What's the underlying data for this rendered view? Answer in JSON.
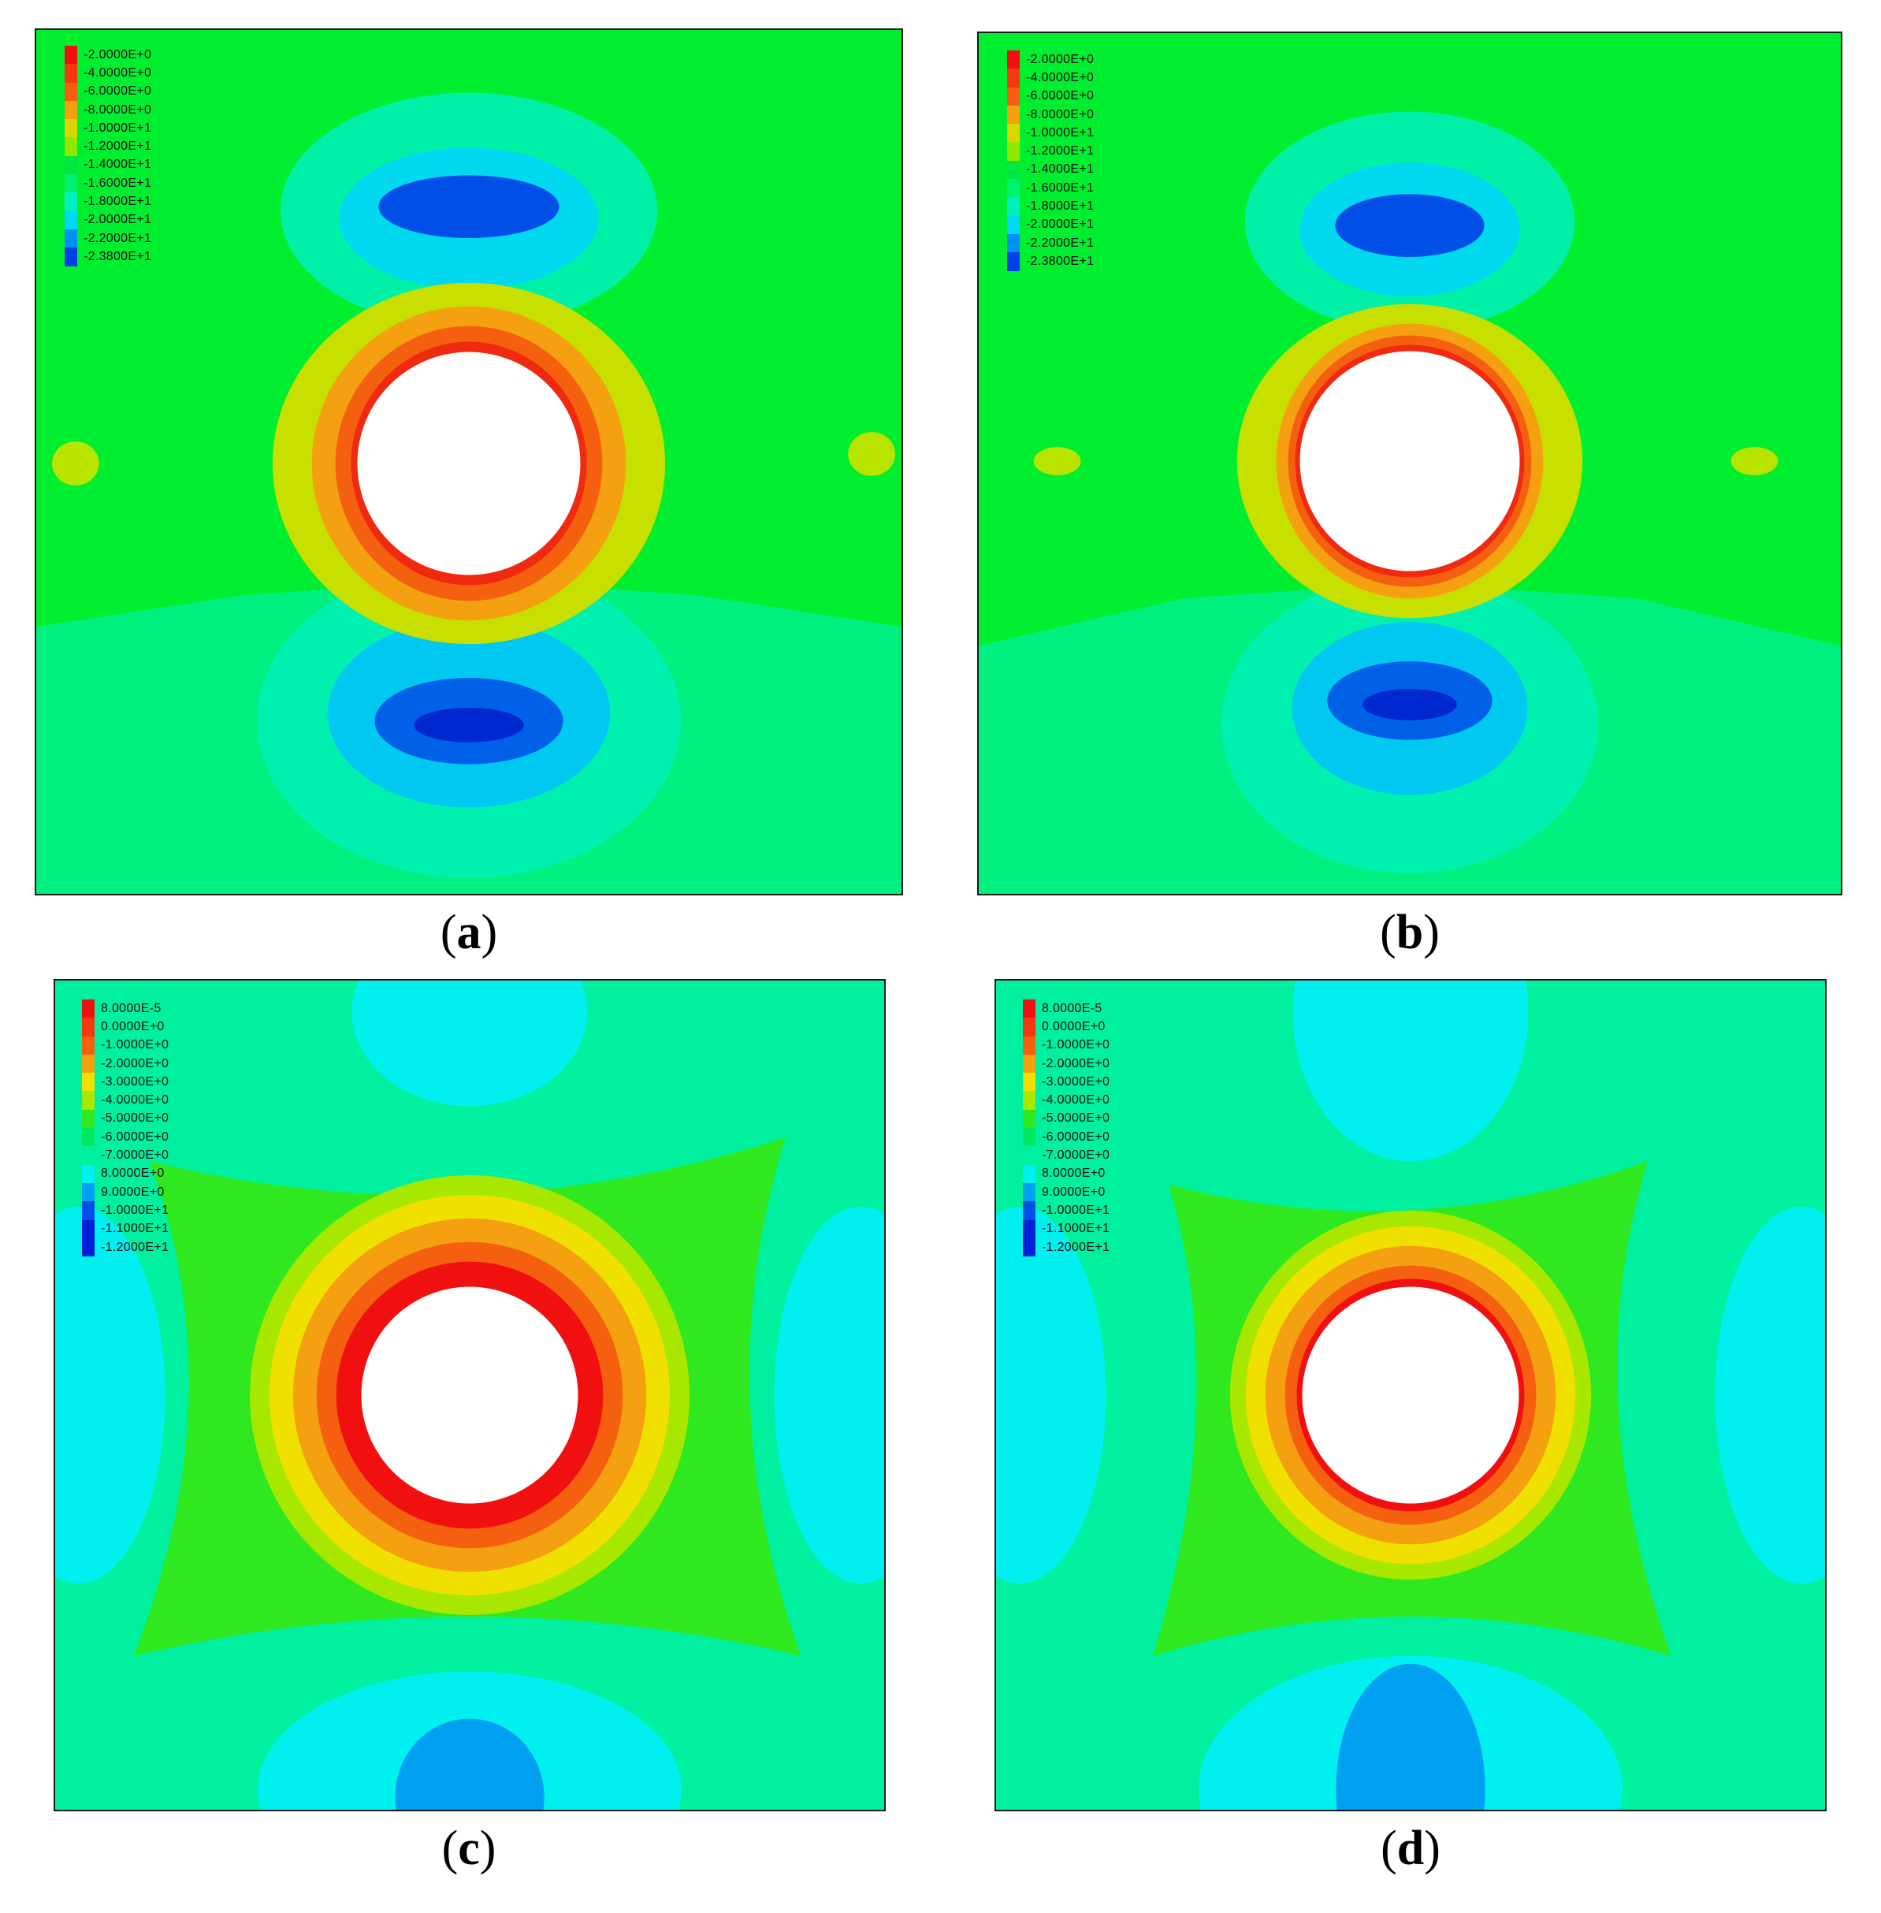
{
  "panels": [
    {
      "id": "a",
      "caption_letter": "a",
      "hole": true,
      "legend": {
        "colors": [
          "#f01010",
          "#f43810",
          "#f46010",
          "#f4a010",
          "#d8d800",
          "#90e800",
          "#00e840",
          "#00f070",
          "#00f0c0",
          "#00d8f8",
          "#0090f0",
          "#0040e8"
        ],
        "labels": [
          "-2.0000E+0",
          "-4.0000E+0",
          "-6.0000E+0",
          "-8.0000E+0",
          "-1.0000E+1",
          "-1.2000E+1",
          "-1.4000E+1",
          "-1.6000E+1",
          "-1.8000E+1",
          "-2.0000E+1",
          "-2.2000E+1",
          "-2.3800E+1"
        ]
      }
    },
    {
      "id": "b",
      "caption_letter": "b",
      "hole": true,
      "legend": {
        "colors": [
          "#f01010",
          "#f43810",
          "#f46010",
          "#f4a010",
          "#d8d800",
          "#90e800",
          "#00e840",
          "#00f070",
          "#00f0c0",
          "#00d8f8",
          "#0090f0",
          "#0040e8"
        ],
        "labels": [
          "-2.0000E+0",
          "-4.0000E+0",
          "-6.0000E+0",
          "-8.0000E+0",
          "-1.0000E+1",
          "-1.2000E+1",
          "-1.4000E+1",
          "-1.6000E+1",
          "-1.8000E+1",
          "-2.0000E+1",
          "-2.2000E+1",
          "-2.3800E+1"
        ]
      }
    },
    {
      "id": "c",
      "caption_letter": "c",
      "hole": true,
      "legend": {
        "colors": [
          "#f01010",
          "#f43810",
          "#f46010",
          "#f4a010",
          "#f0e000",
          "#a8e800",
          "#30e820",
          "#00e860",
          "#00f0a0",
          "#00f0f0",
          "#00a0f0",
          "#0050e8",
          "#0020d8"
        ],
        "labels": [
          "8.0000E-5",
          "0.0000E+0",
          "-1.0000E+0",
          "-2.0000E+0",
          "-3.0000E+0",
          "-4.0000E+0",
          "-5.0000E+0",
          "-6.0000E+0",
          "-7.0000E+0",
          "8.0000E+0",
          "9.0000E+0",
          "-1.0000E+1",
          "-1.1000E+1",
          "-1.2000E+1"
        ]
      }
    },
    {
      "id": "d",
      "caption_letter": "d",
      "hole": true,
      "legend": {
        "colors": [
          "#f01010",
          "#f43810",
          "#f46010",
          "#f4a010",
          "#f0e000",
          "#a8e800",
          "#30e820",
          "#00e860",
          "#00f0a0",
          "#00f0f0",
          "#00a0f0",
          "#0050e8",
          "#0020d8"
        ],
        "labels": [
          "8.0000E-5",
          "0.0000E+0",
          "-1.0000E+0",
          "-2.0000E+0",
          "-3.0000E+0",
          "-4.0000E+0",
          "-5.0000E+0",
          "-6.0000E+0",
          "-7.0000E+0",
          "8.0000E+0",
          "9.0000E+0",
          "-1.0000E+1",
          "-1.1000E+1",
          "-1.2000E+1"
        ]
      }
    }
  ]
}
